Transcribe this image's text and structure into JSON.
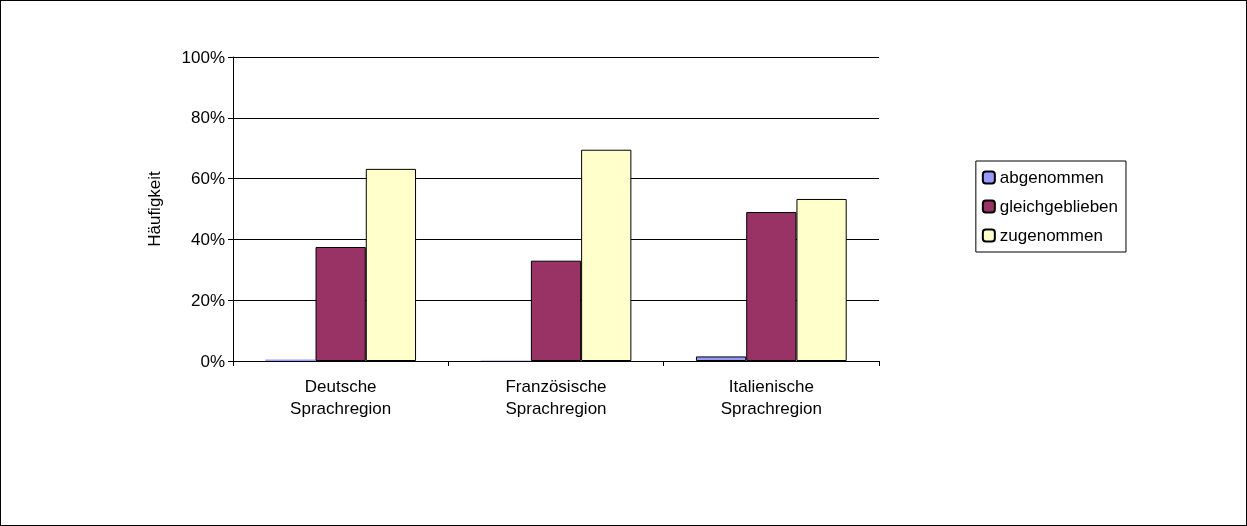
{
  "chart_data": {
    "type": "bar",
    "ylabel": "Häufigkeit",
    "categories": [
      "Deutsche\nSprachregion",
      "Französische\nSprachregion",
      "Italienische\nSprachregion"
    ],
    "series": [
      {
        "name": "abgenommen",
        "color": "#9999ff",
        "values": [
          0.5,
          0.2,
          1.5
        ]
      },
      {
        "name": "gleichgeblieben",
        "color": "#993366",
        "values": [
          37.5,
          33,
          49
        ]
      },
      {
        "name": "zugenommen",
        "color": "#ffffcc",
        "values": [
          63.2,
          69.5,
          53.3
        ]
      }
    ],
    "ylim": [
      0,
      100
    ],
    "yticks": [
      {
        "value": 0,
        "label": "0%"
      },
      {
        "value": 20,
        "label": "20%"
      },
      {
        "value": 40,
        "label": "40%"
      },
      {
        "value": 60,
        "label": "60%"
      },
      {
        "value": 80,
        "label": "80%"
      },
      {
        "value": 100,
        "label": "100%"
      }
    ],
    "grid": "y",
    "legend": "right"
  }
}
